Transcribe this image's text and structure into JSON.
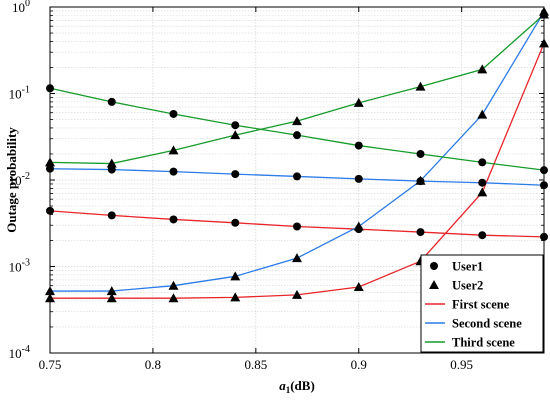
{
  "chart_data": {
    "type": "line",
    "title": "",
    "xlabel_var": "a",
    "xlabel_sub": "1",
    "xlabel_unit": "(dB)",
    "ylabel": "Outage probability",
    "xlim": [
      0.75,
      0.99
    ],
    "ylim": [
      0.0001,
      1
    ],
    "yscale": "log",
    "grid": true,
    "x_ticks": [
      0.75,
      0.8,
      0.85,
      0.9,
      0.95
    ],
    "x_tick_labels": [
      "0.75",
      "0.8",
      "0.85",
      "0.9",
      "0.95"
    ],
    "y_ticks": [
      {
        "value": 0.0001,
        "base": "10",
        "exp": "-4"
      },
      {
        "value": 0.001,
        "base": "10",
        "exp": "-3"
      },
      {
        "value": 0.01,
        "base": "10",
        "exp": "-2"
      },
      {
        "value": 0.1,
        "base": "10",
        "exp": "-1"
      },
      {
        "value": 1,
        "base": "10",
        "exp": "0"
      }
    ],
    "legend_position": "bottom-right",
    "legend": [
      {
        "label": "User1",
        "kind": "marker",
        "marker": "circle"
      },
      {
        "label": "User2",
        "kind": "marker",
        "marker": "triangle"
      },
      {
        "label": "First scene",
        "kind": "line",
        "color": "#e8262a"
      },
      {
        "label": "Second scene",
        "kind": "line",
        "color": "#2b7be8"
      },
      {
        "label": "Third scene",
        "kind": "line",
        "color": "#159b2a"
      }
    ],
    "x": [
      0.75,
      0.78,
      0.81,
      0.84,
      0.87,
      0.9,
      0.93,
      0.96,
      0.99
    ],
    "series": [
      {
        "scene": "First scene",
        "user": "User1",
        "color": "#e8262a",
        "marker": "circle",
        "values": [
          0.0044,
          0.0039,
          0.0035,
          0.0032,
          0.0029,
          0.0027,
          0.0025,
          0.0023,
          0.0022
        ]
      },
      {
        "scene": "First scene",
        "user": "User2",
        "color": "#e8262a",
        "marker": "triangle",
        "values": [
          0.00043,
          0.00043,
          0.00043,
          0.00044,
          0.00047,
          0.00058,
          0.00115,
          0.0072,
          0.38
        ]
      },
      {
        "scene": "Second scene",
        "user": "User1",
        "color": "#2b7be8",
        "marker": "circle",
        "values": [
          0.0135,
          0.0132,
          0.0125,
          0.0117,
          0.011,
          0.0103,
          0.0097,
          0.0093,
          0.0087
        ]
      },
      {
        "scene": "Second scene",
        "user": "User2",
        "color": "#2b7be8",
        "marker": "triangle",
        "values": [
          0.00052,
          0.00052,
          0.0006,
          0.00077,
          0.00125,
          0.0029,
          0.0098,
          0.057,
          0.88
        ]
      },
      {
        "scene": "Third scene",
        "user": "User1",
        "color": "#159b2a",
        "marker": "circle",
        "values": [
          0.115,
          0.08,
          0.058,
          0.043,
          0.033,
          0.025,
          0.02,
          0.016,
          0.013
        ]
      },
      {
        "scene": "Third scene",
        "user": "User2",
        "color": "#159b2a",
        "marker": "triangle",
        "values": [
          0.016,
          0.0155,
          0.022,
          0.033,
          0.048,
          0.078,
          0.12,
          0.19,
          0.82
        ]
      }
    ]
  }
}
